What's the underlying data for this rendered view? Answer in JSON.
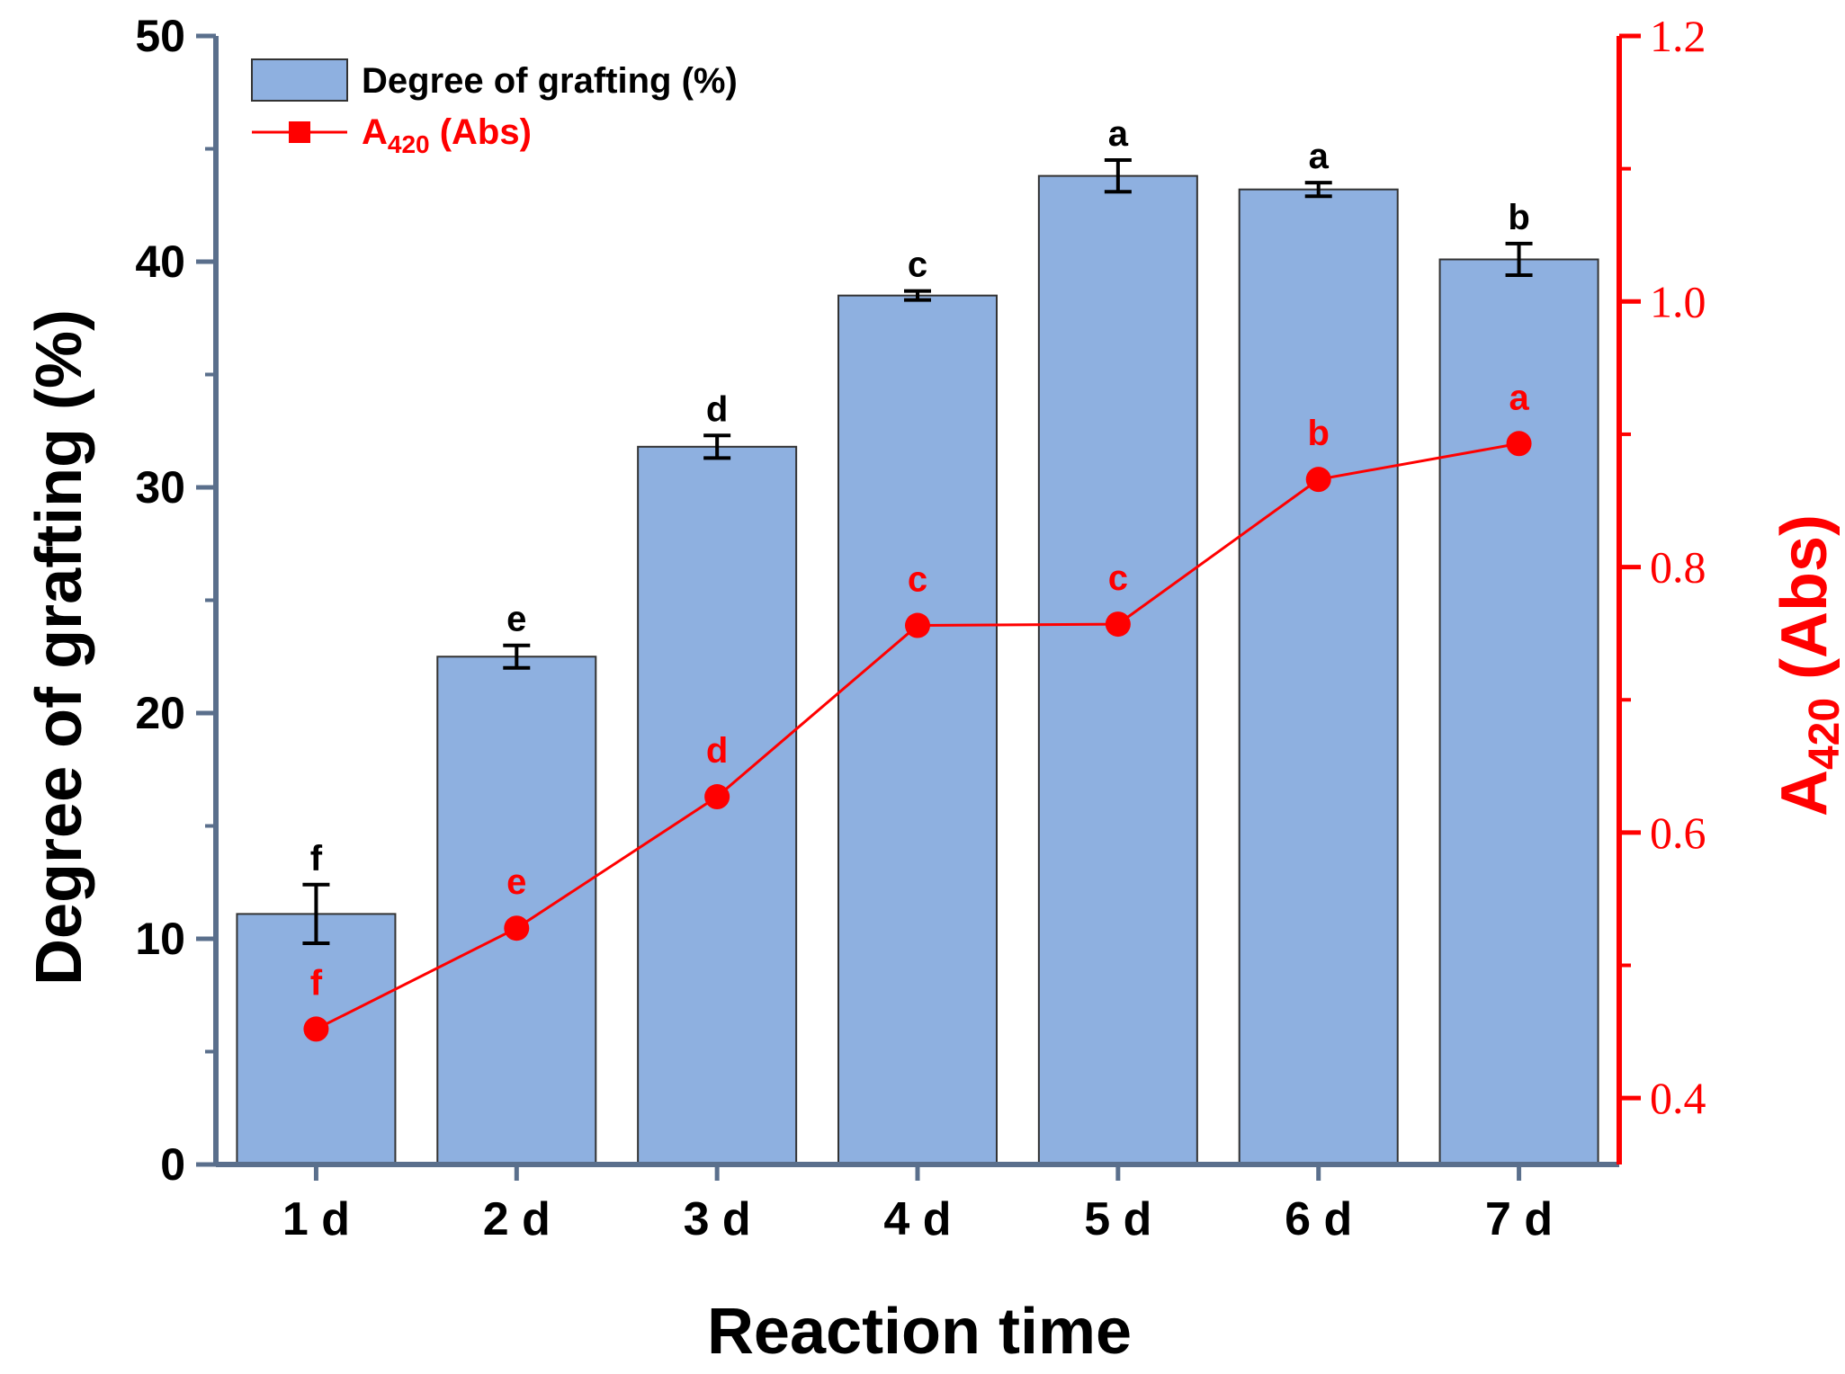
{
  "chart_data": {
    "type": "bar",
    "categories": [
      "1 d",
      "2 d",
      "3 d",
      "4 d",
      "5 d",
      "6 d",
      "7 d"
    ],
    "series": [
      {
        "name": "Degree of grafting (%)",
        "type": "bar",
        "axis": "left",
        "values": [
          11.1,
          22.5,
          31.8,
          38.5,
          43.8,
          43.2,
          40.1
        ],
        "errors": [
          1.3,
          0.5,
          0.5,
          0.2,
          0.7,
          0.3,
          0.7
        ],
        "significance": [
          "f",
          "e",
          "d",
          "c",
          "a",
          "a",
          "b"
        ],
        "color": "#8eb0e0"
      },
      {
        "name_main": "A",
        "name_sub": "420",
        "name_rest": " (Abs)",
        "type": "line",
        "axis": "right",
        "values": [
          0.452,
          0.528,
          0.627,
          0.756,
          0.757,
          0.866,
          0.893
        ],
        "significance": [
          "f",
          "e",
          "d",
          "c",
          "c",
          "b",
          "a"
        ],
        "color": "#ff0000"
      }
    ],
    "xlabel": "Reaction time",
    "ylabel": "Degree of grafting (%)",
    "y2label_main": "A",
    "y2label_sub": "420",
    "y2label_rest": " (Abs)",
    "ylim": [
      0,
      50
    ],
    "y2lim": [
      0.35,
      1.2
    ],
    "yticks": [
      "0",
      "10",
      "20",
      "30",
      "40",
      "50"
    ],
    "y2ticks": [
      "0.4",
      "0.6",
      "0.8",
      "1.0",
      "1.2"
    ],
    "legend_position": "top-left",
    "grid": false
  },
  "colors": {
    "bar_fill": "#8eb0e0",
    "bar_stroke": "#333333",
    "left_axis": "#5a6f8c",
    "right_axis": "#ff0000",
    "line": "#ff0000"
  }
}
